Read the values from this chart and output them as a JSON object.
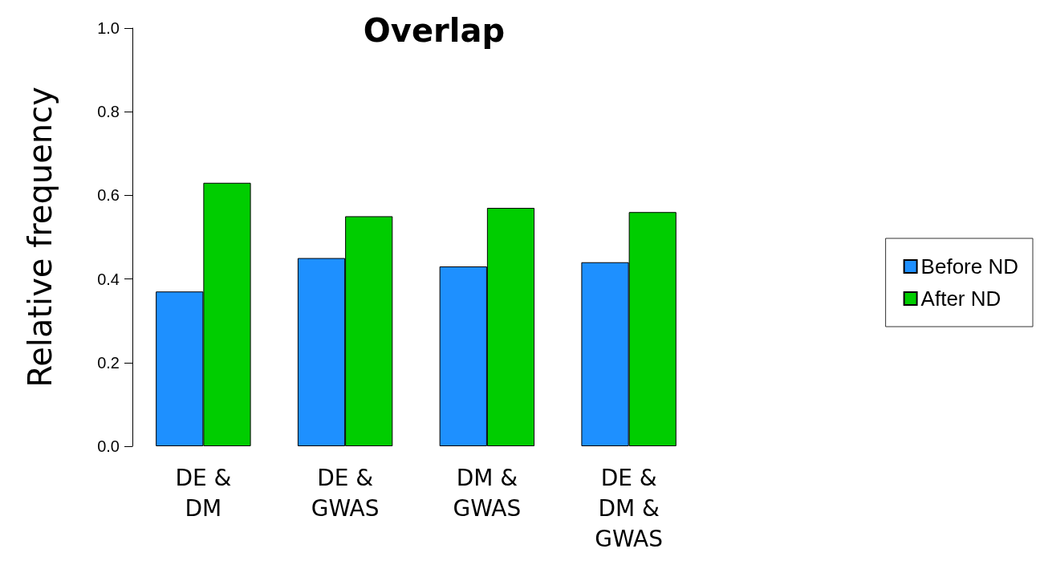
{
  "chart_data": {
    "type": "bar",
    "title": "Overlap",
    "ylabel": "Relative frequency",
    "categories": [
      "DE &\nDM",
      "DE &\nGWAS",
      "DM &\nGWAS",
      "DE &\nDM &\nGWAS"
    ],
    "series": [
      {
        "name": "Before ND",
        "color": "#1e90ff",
        "values": [
          0.37,
          0.45,
          0.43,
          0.44
        ]
      },
      {
        "name": "After ND",
        "color": "#00cd00",
        "values": [
          0.63,
          0.55,
          0.57,
          0.56
        ]
      }
    ],
    "ylim": [
      0,
      1
    ],
    "yticks": [
      {
        "value": 0,
        "label": "0.0"
      },
      {
        "value": 0.2,
        "label": "0.2"
      },
      {
        "value": 0.4,
        "label": "0.4"
      },
      {
        "value": 0.6,
        "label": "0.6"
      },
      {
        "value": 0.8,
        "label": "0.8"
      },
      {
        "value": 1,
        "label": "1.0"
      }
    ],
    "grid": false,
    "legend": "right"
  }
}
